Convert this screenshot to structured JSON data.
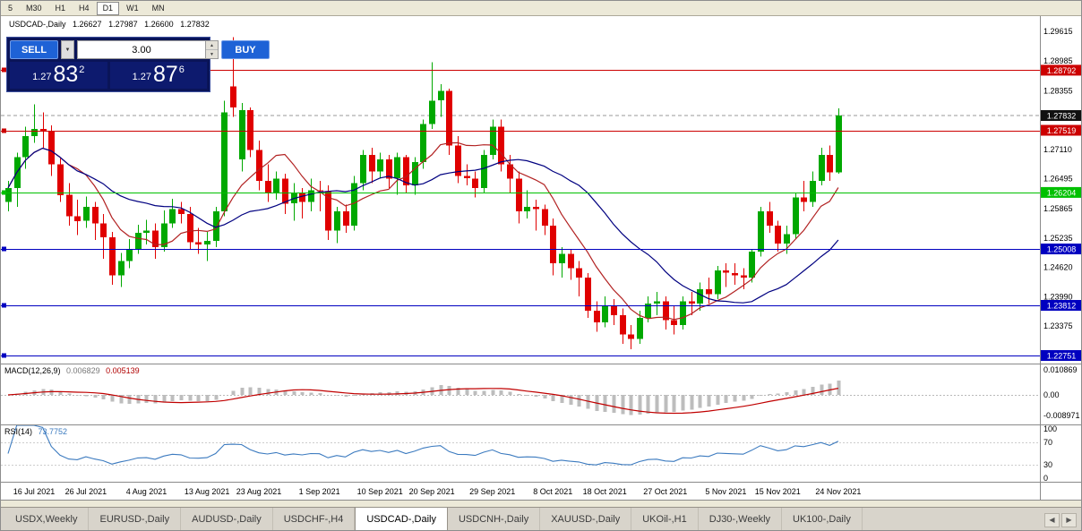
{
  "toolbar": {
    "timeframes": [
      "5",
      "M30",
      "H1",
      "H4",
      "D1",
      "W1",
      "MN"
    ],
    "active": "D1"
  },
  "chart_header": {
    "symbol": "USDCAD-,Daily",
    "open": "1.26627",
    "high": "1.27987",
    "low": "1.26600",
    "close": "1.27832"
  },
  "trade_panel": {
    "sell_label": "SELL",
    "buy_label": "BUY",
    "volume": "3.00",
    "dropdown_icon": "▼",
    "spin_up_icon": "▲",
    "spin_down_icon": "▼",
    "sell_price": {
      "prefix": "1.27",
      "big": "83",
      "sup": "2"
    },
    "buy_price": {
      "prefix": "1.27",
      "big": "87",
      "sup": "6"
    }
  },
  "price_axis": {
    "ticks": [
      "1.29615",
      "1.28985",
      "1.28355",
      "1.27110",
      "1.26495",
      "1.25865",
      "1.25235",
      "1.24620",
      "1.23990",
      "1.23375"
    ],
    "current": {
      "label": "1.27832",
      "color": "#111111"
    }
  },
  "indicators": {
    "macd": {
      "label": "MACD(12,26,9)",
      "value_main": "0.006829",
      "value_signal": "0.005139",
      "axis": [
        "0.010869",
        "0.00",
        "-0.008971"
      ]
    },
    "rsi": {
      "label": "RSI(14)",
      "value": "73.7752",
      "axis": [
        "100",
        "70",
        "30",
        "0"
      ],
      "levels": [
        70,
        30
      ]
    }
  },
  "date_axis": [
    "16 Jul 2021",
    "26 Jul 2021",
    "4 Aug 2021",
    "13 Aug 2021",
    "23 Aug 2021",
    "1 Sep 2021",
    "10 Sep 2021",
    "20 Sep 2021",
    "29 Sep 2021",
    "8 Oct 2021",
    "18 Oct 2021",
    "27 Oct 2021",
    "5 Nov 2021",
    "15 Nov 2021",
    "24 Nov 2021"
  ],
  "tabs": {
    "items": [
      "USDX,Weekly",
      "EURUSD-,Daily",
      "AUDUSD-,Daily",
      "USDCHF-,H4",
      "USDCAD-,Daily",
      "USDCNH-,Daily",
      "XAUUSD-,Daily",
      "UKOil-,H1",
      "DJ30-,Weekly",
      "UK100-,Daily"
    ],
    "active": "USDCAD-,Daily",
    "scroll_left_icon": "◀",
    "scroll_right_icon": "▶"
  },
  "chart_data": {
    "type": "candlestick",
    "title": "USDCAD-,Daily",
    "timeframe": "Daily",
    "current_price": 1.27832,
    "ylim": [
      1.2245,
      1.2975
    ],
    "colors": {
      "up": "#00a800",
      "down": "#e00000",
      "macd_hist": "#bdbdbd",
      "macd_signal": "#c00000",
      "rsi": "#3b7abf"
    },
    "overlays": [
      {
        "name": "ma-fast-line",
        "period": 8,
        "color": "#b22222"
      },
      {
        "name": "ma-slow-line",
        "period": 20,
        "color": "#000080"
      }
    ],
    "levels": [
      {
        "price": 1.28792,
        "label": "1.28792",
        "color": "#cc0000"
      },
      {
        "price": 1.27519,
        "label": "1.27519",
        "color": "#cc0000"
      },
      {
        "price": 1.26204,
        "label": "1.26204",
        "color": "#00c000"
      },
      {
        "price": 1.25008,
        "label": "1.25008",
        "color": "#0000c0"
      },
      {
        "price": 1.23812,
        "label": "1.23812",
        "color": "#0000c0"
      },
      {
        "price": 1.22751,
        "label": "1.22751",
        "color": "#0000c0"
      }
    ],
    "ohlc": [
      [
        "13 Jul 2021",
        1.26,
        1.2645,
        1.258,
        1.263
      ],
      [
        "14 Jul 2021",
        1.263,
        1.2705,
        1.259,
        1.2695
      ],
      [
        "15 Jul 2021",
        1.2695,
        1.276,
        1.267,
        1.274
      ],
      [
        "16 Jul 2021",
        1.274,
        1.2807,
        1.2725,
        1.2755
      ],
      [
        "19 Jul 2021",
        1.2755,
        1.279,
        1.2715,
        1.275
      ],
      [
        "20 Jul 2021",
        1.275,
        1.2762,
        1.2655,
        1.268
      ],
      [
        "21 Jul 2021",
        1.268,
        1.2692,
        1.26,
        1.2615
      ],
      [
        "22 Jul 2021",
        1.2615,
        1.264,
        1.255,
        1.257
      ],
      [
        "23 Jul 2021",
        1.257,
        1.2605,
        1.253,
        1.256
      ],
      [
        "26 Jul 2021",
        1.256,
        1.2612,
        1.2545,
        1.259
      ],
      [
        "27 Jul 2021",
        1.259,
        1.26,
        1.252,
        1.2555
      ],
      [
        "28 Jul 2021",
        1.2555,
        1.2575,
        1.248,
        1.2525
      ],
      [
        "29 Jul 2021",
        1.2525,
        1.2537,
        1.2425,
        1.2445
      ],
      [
        "30 Jul 2021",
        1.2445,
        1.2492,
        1.242,
        1.2475
      ],
      [
        "2 Aug 2021",
        1.2475,
        1.2522,
        1.246,
        1.25
      ],
      [
        "3 Aug 2021",
        1.25,
        1.2552,
        1.249,
        1.2535
      ],
      [
        "4 Aug 2021",
        1.2535,
        1.2562,
        1.251,
        1.254
      ],
      [
        "5 Aug 2021",
        1.254,
        1.2555,
        1.248,
        1.2505
      ],
      [
        "6 Aug 2021",
        1.2505,
        1.2582,
        1.2495,
        1.2555
      ],
      [
        "9 Aug 2021",
        1.2555,
        1.2607,
        1.2545,
        1.2585
      ],
      [
        "10 Aug 2021",
        1.2585,
        1.26,
        1.2555,
        1.2575
      ],
      [
        "11 Aug 2021",
        1.2575,
        1.259,
        1.25,
        1.2515
      ],
      [
        "12 Aug 2021",
        1.2515,
        1.2545,
        1.249,
        1.251
      ],
      [
        "13 Aug 2021",
        1.251,
        1.2537,
        1.2475,
        1.2518
      ],
      [
        "16 Aug 2021",
        1.2518,
        1.259,
        1.2505,
        1.258
      ],
      [
        "17 Aug 2021",
        1.258,
        1.2815,
        1.257,
        1.279
      ],
      [
        "18 Aug 2021",
        1.2845,
        1.2949,
        1.278,
        1.28
      ],
      [
        "19 Aug 2021",
        1.269,
        1.281,
        1.2665,
        1.2795
      ],
      [
        "20 Aug 2021",
        1.2795,
        1.28,
        1.2695,
        1.271
      ],
      [
        "23 Aug 2021",
        1.271,
        1.273,
        1.2625,
        1.2645
      ],
      [
        "24 Aug 2021",
        1.2645,
        1.268,
        1.26,
        1.262
      ],
      [
        "25 Aug 2021",
        1.262,
        1.2665,
        1.2605,
        1.265
      ],
      [
        "26 Aug 2021",
        1.265,
        1.266,
        1.2575,
        1.2597
      ],
      [
        "27 Aug 2021",
        1.2597,
        1.264,
        1.256,
        1.262
      ],
      [
        "30 Aug 2021",
        1.262,
        1.263,
        1.2565,
        1.26
      ],
      [
        "31 Aug 2021",
        1.26,
        1.265,
        1.258,
        1.2625
      ],
      [
        "1 Sep 2021",
        1.2625,
        1.2645,
        1.258,
        1.2623
      ],
      [
        "2 Sep 2021",
        1.2623,
        1.2635,
        1.252,
        1.254
      ],
      [
        "3 Sep 2021",
        1.254,
        1.259,
        1.2513,
        1.258
      ],
      [
        "6 Sep 2021",
        1.258,
        1.2595,
        1.2535,
        1.255
      ],
      [
        "7 Sep 2021",
        1.255,
        1.2655,
        1.254,
        1.264
      ],
      [
        "8 Sep 2021",
        1.264,
        1.271,
        1.2625,
        1.27
      ],
      [
        "9 Sep 2021",
        1.27,
        1.2715,
        1.264,
        1.2665
      ],
      [
        "10 Sep 2021",
        1.2665,
        1.2705,
        1.265,
        1.269
      ],
      [
        "13 Sep 2021",
        1.269,
        1.27,
        1.263,
        1.265
      ],
      [
        "14 Sep 2021",
        1.265,
        1.2705,
        1.2615,
        1.2695
      ],
      [
        "15 Sep 2021",
        1.2695,
        1.27,
        1.262,
        1.2635
      ],
      [
        "16 Sep 2021",
        1.2635,
        1.2695,
        1.2615,
        1.2685
      ],
      [
        "17 Sep 2021",
        1.2685,
        1.2775,
        1.267,
        1.2765
      ],
      [
        "20 Sep 2021",
        1.2765,
        1.2896,
        1.2755,
        1.2815
      ],
      [
        "21 Sep 2021",
        1.2815,
        1.285,
        1.278,
        1.2835
      ],
      [
        "22 Sep 2021",
        1.2835,
        1.284,
        1.27,
        1.272
      ],
      [
        "23 Sep 2021",
        1.272,
        1.274,
        1.264,
        1.2655
      ],
      [
        "24 Sep 2021",
        1.2655,
        1.268,
        1.2635,
        1.265
      ],
      [
        "27 Sep 2021",
        1.265,
        1.2665,
        1.261,
        1.263
      ],
      [
        "28 Sep 2021",
        1.263,
        1.271,
        1.262,
        1.27
      ],
      [
        "29 Sep 2021",
        1.27,
        1.2775,
        1.269,
        1.276
      ],
      [
        "30 Sep 2021",
        1.276,
        1.2775,
        1.2665,
        1.268
      ],
      [
        "1 Oct 2021",
        1.268,
        1.27,
        1.262,
        1.265
      ],
      [
        "4 Oct 2021",
        1.265,
        1.2665,
        1.2555,
        1.258
      ],
      [
        "5 Oct 2021",
        1.258,
        1.2625,
        1.2565,
        1.259
      ],
      [
        "6 Oct 2021",
        1.259,
        1.2605,
        1.254,
        1.2585
      ],
      [
        "7 Oct 2021",
        1.2585,
        1.2595,
        1.253,
        1.255
      ],
      [
        "8 Oct 2021",
        1.255,
        1.2565,
        1.2445,
        1.247
      ],
      [
        "11 Oct 2021",
        1.247,
        1.2505,
        1.244,
        1.249
      ],
      [
        "12 Oct 2021",
        1.249,
        1.25,
        1.2435,
        1.246
      ],
      [
        "13 Oct 2021",
        1.246,
        1.2475,
        1.24,
        1.244
      ],
      [
        "14 Oct 2021",
        1.244,
        1.245,
        1.2355,
        1.237
      ],
      [
        "15 Oct 2021",
        1.237,
        1.239,
        1.2325,
        1.2345
      ],
      [
        "18 Oct 2021",
        1.2345,
        1.24,
        1.2335,
        1.238
      ],
      [
        "19 Oct 2021",
        1.238,
        1.2395,
        1.234,
        1.236
      ],
      [
        "20 Oct 2021",
        1.236,
        1.2375,
        1.23,
        1.232
      ],
      [
        "21 Oct 2021",
        1.232,
        1.234,
        1.2288,
        1.231
      ],
      [
        "22 Oct 2021",
        1.231,
        1.237,
        1.23,
        1.2355
      ],
      [
        "25 Oct 2021",
        1.2355,
        1.24,
        1.2345,
        1.2385
      ],
      [
        "26 Oct 2021",
        1.2385,
        1.241,
        1.236,
        1.239
      ],
      [
        "27 Oct 2021",
        1.239,
        1.24,
        1.233,
        1.235
      ],
      [
        "28 Oct 2021",
        1.235,
        1.238,
        1.232,
        1.234
      ],
      [
        "29 Oct 2021",
        1.234,
        1.24,
        1.233,
        1.239
      ],
      [
        "1 Nov 2021",
        1.239,
        1.241,
        1.236,
        1.2385
      ],
      [
        "2 Nov 2021",
        1.2385,
        1.243,
        1.237,
        1.2415
      ],
      [
        "3 Nov 2021",
        1.2415,
        1.244,
        1.2385,
        1.2405
      ],
      [
        "4 Nov 2021",
        1.2405,
        1.2465,
        1.2395,
        1.2455
      ],
      [
        "5 Nov 2021",
        1.2455,
        1.247,
        1.242,
        1.245
      ],
      [
        "8 Nov 2021",
        1.245,
        1.247,
        1.2425,
        1.2445
      ],
      [
        "9 Nov 2021",
        1.2445,
        1.246,
        1.2415,
        1.244
      ],
      [
        "10 Nov 2021",
        1.244,
        1.25,
        1.243,
        1.2495
      ],
      [
        "11 Nov 2021",
        1.2495,
        1.259,
        1.2485,
        1.258
      ],
      [
        "12 Nov 2021",
        1.258,
        1.26,
        1.2535,
        1.255
      ],
      [
        "15 Nov 2021",
        1.255,
        1.256,
        1.2495,
        1.2512
      ],
      [
        "16 Nov 2021",
        1.2512,
        1.255,
        1.249,
        1.2532
      ],
      [
        "17 Nov 2021",
        1.2532,
        1.262,
        1.2522,
        1.261
      ],
      [
        "18 Nov 2021",
        1.261,
        1.2645,
        1.258,
        1.26
      ],
      [
        "19 Nov 2021",
        1.26,
        1.2665,
        1.259,
        1.2645
      ],
      [
        "22 Nov 2021",
        1.2645,
        1.2715,
        1.2635,
        1.27
      ],
      [
        "23 Nov 2021",
        1.27,
        1.272,
        1.2645,
        1.2663
      ],
      [
        "24 Nov 2021",
        1.26627,
        1.27987,
        1.266,
        1.27832
      ]
    ]
  }
}
